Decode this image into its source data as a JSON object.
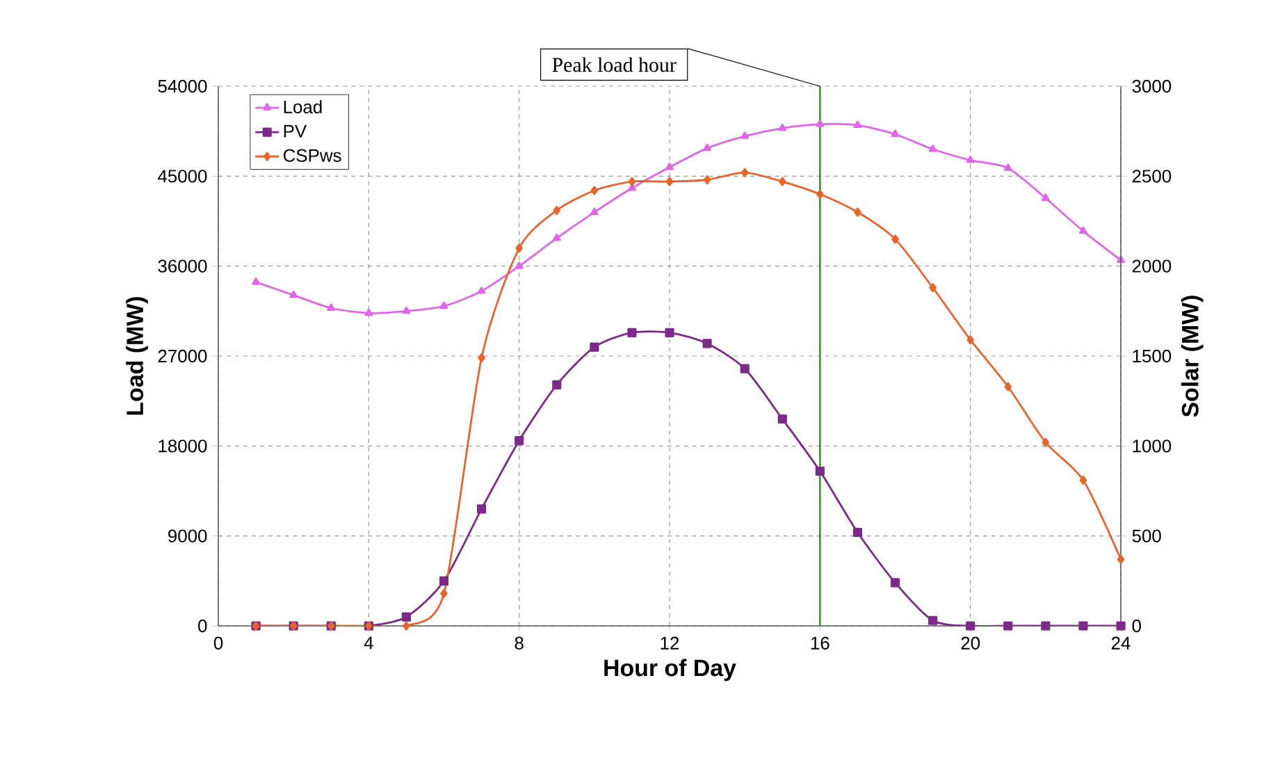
{
  "chart_data": {
    "type": "line",
    "xlabel": "Hour of Day",
    "ylabel": "Load (MW)",
    "y2label": "Solar (MW)",
    "x": [
      1,
      2,
      3,
      4,
      5,
      6,
      7,
      8,
      9,
      10,
      11,
      12,
      13,
      14,
      15,
      16,
      17,
      18,
      19,
      20,
      21,
      22,
      23,
      24
    ],
    "series": [
      {
        "name": "Load",
        "color": "#e066e8",
        "marker": "triangle",
        "values": [
          34400,
          33100,
          31800,
          31300,
          31500,
          32000,
          33500,
          36000,
          38800,
          41400,
          43800,
          45900,
          47800,
          49000,
          49800,
          50200,
          50100,
          49200,
          47700,
          46600,
          45800,
          42800,
          39500,
          36600
        ]
      },
      {
        "name": "PV",
        "color": "#7b2a8a",
        "marker": "square",
        "axis": "y2",
        "values": [
          0,
          0,
          0,
          0,
          50,
          250,
          650,
          1030,
          1340,
          1550,
          1630,
          1630,
          1570,
          1430,
          1150,
          860,
          520,
          240,
          30,
          0,
          0,
          0,
          0,
          0
        ]
      },
      {
        "name": "CSPws",
        "color": "#e8642a",
        "marker": "diamond",
        "axis": "y2",
        "values": [
          0,
          0,
          0,
          0,
          0,
          180,
          1490,
          2100,
          2310,
          2420,
          2470,
          2470,
          2480,
          2520,
          2470,
          2400,
          2300,
          2150,
          1880,
          1590,
          1330,
          1020,
          810,
          370
        ]
      }
    ],
    "xlim": [
      0,
      24
    ],
    "xticks": [
      0,
      4,
      8,
      12,
      16,
      20,
      24
    ],
    "ylim": [
      0,
      54000
    ],
    "yticks": [
      0,
      9000,
      18000,
      27000,
      36000,
      45000,
      54000
    ],
    "y2lim": [
      0,
      3000
    ],
    "y2ticks": [
      0,
      500,
      1000,
      1500,
      2000,
      2500,
      3000
    ],
    "ref_lines": [
      {
        "axis": "x",
        "value": 16,
        "label": "Peak load hour",
        "color": "#2e8b22"
      }
    ],
    "grid": true,
    "legend": "top left",
    "line_style": "solid"
  }
}
